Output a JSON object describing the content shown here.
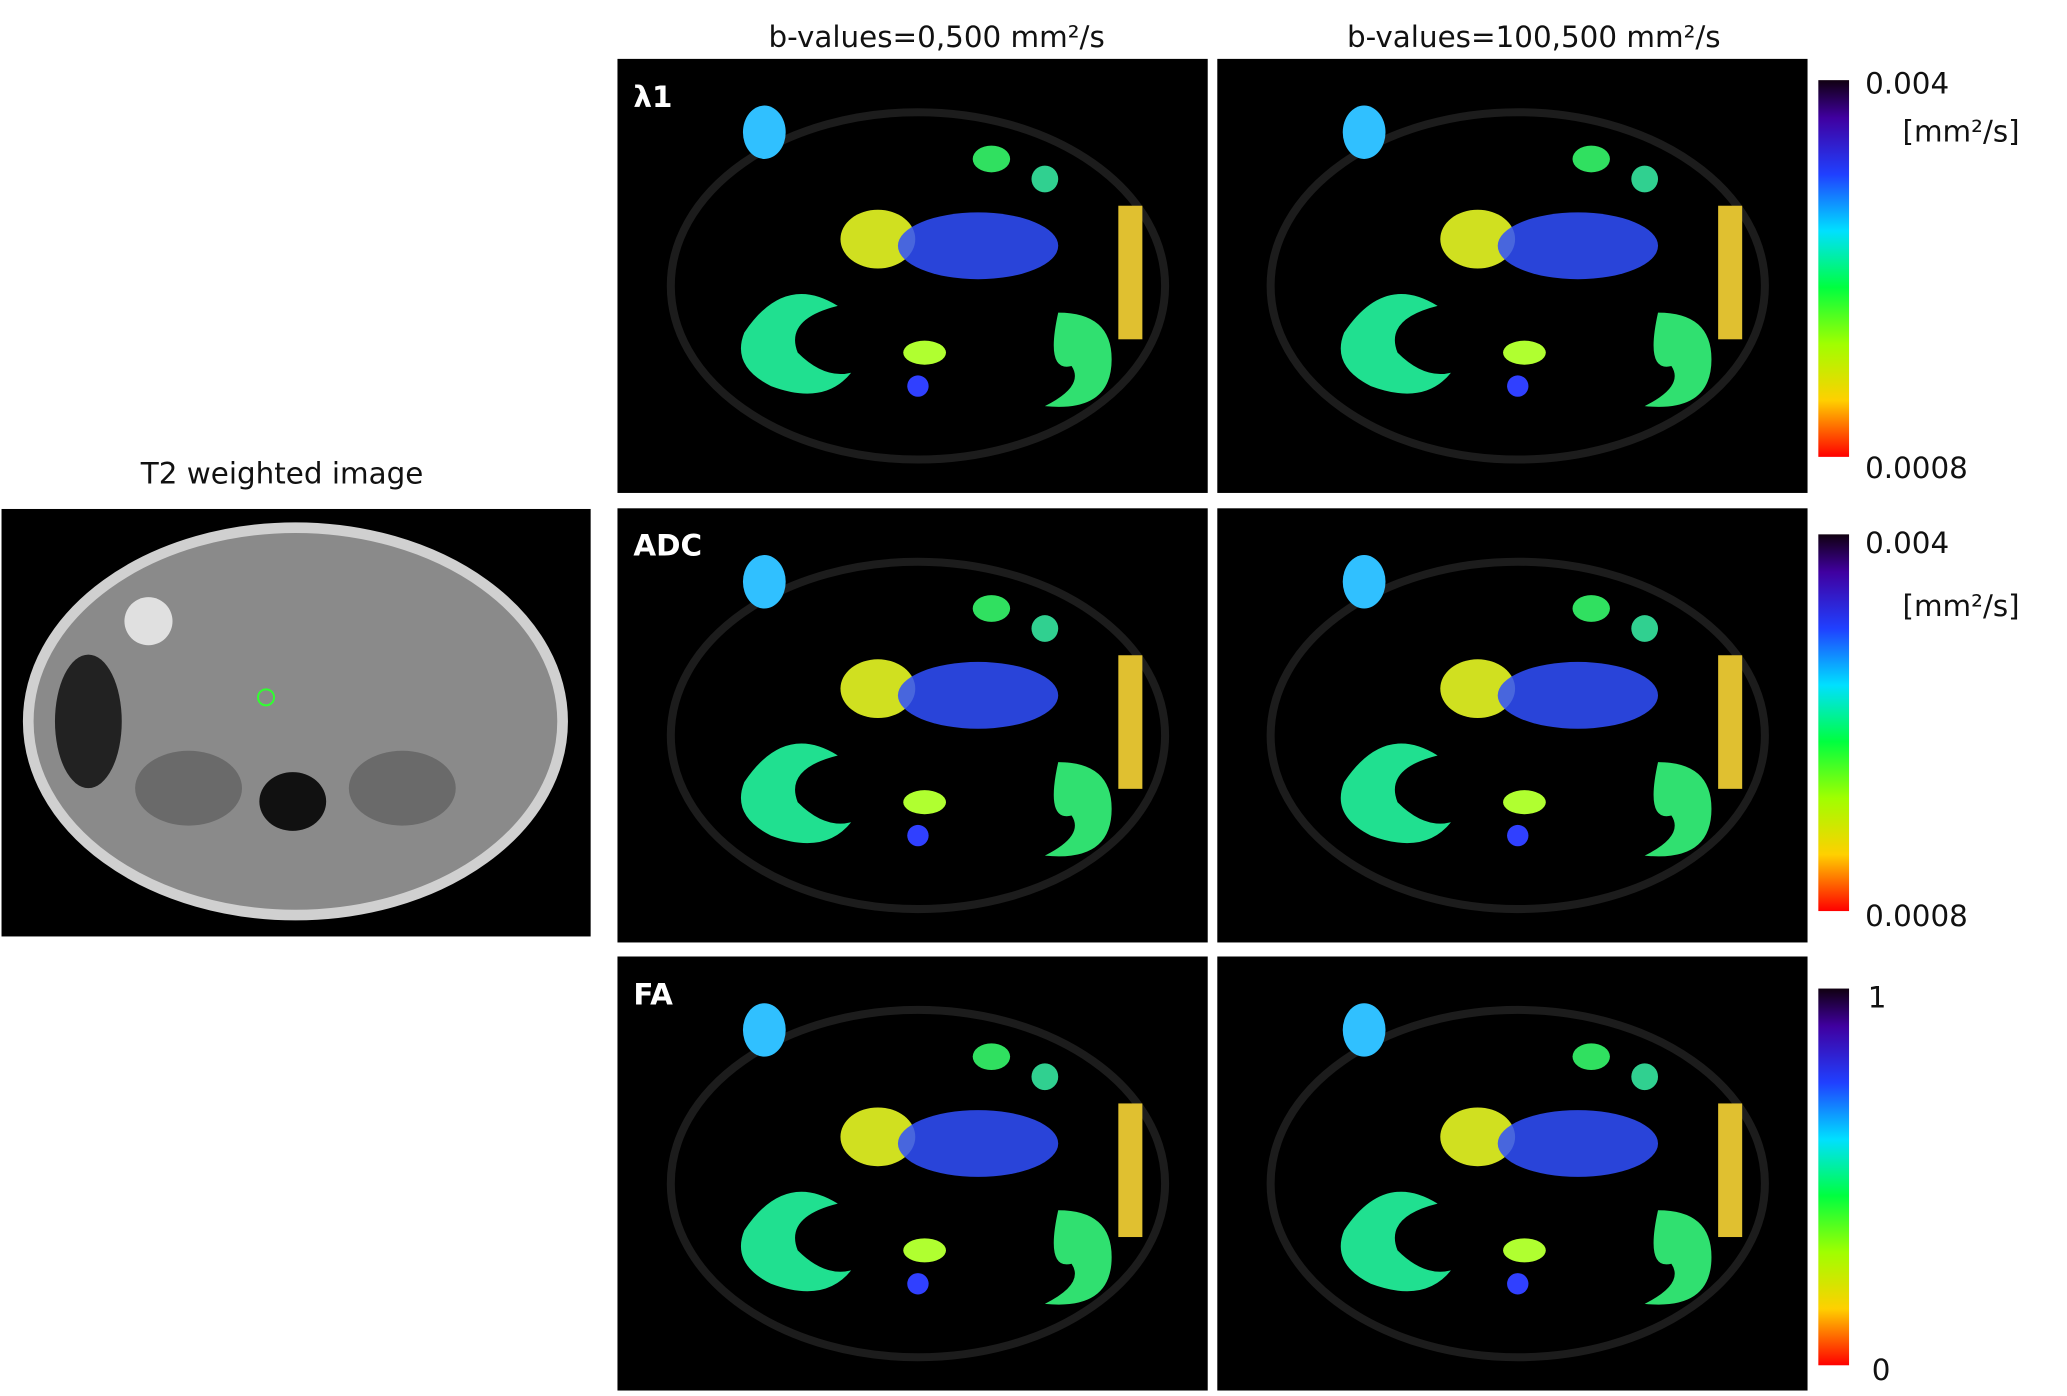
{
  "t2_panel": {
    "title": "T2 weighted image"
  },
  "columns": [
    "b-values=0,500 mm²/s",
    "b-values=100,500 mm²/s"
  ],
  "rows": [
    {
      "label": "λ1",
      "colorbar": {
        "max": "0.004",
        "unit": "[mm²/s]",
        "min": "0.0008"
      }
    },
    {
      "label": "ADC",
      "colorbar": {
        "max": "0.004",
        "unit": "[mm²/s]",
        "min": "0.0008"
      }
    },
    {
      "label": "FA",
      "colorbar": {
        "max": "1",
        "min": "0"
      }
    }
  ]
}
